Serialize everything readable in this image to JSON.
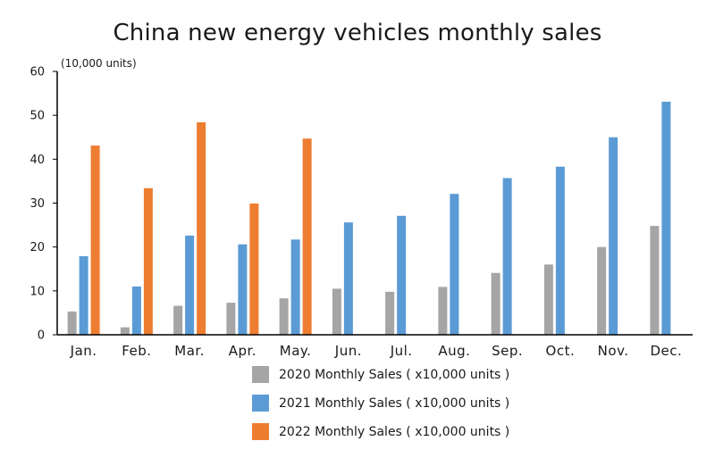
{
  "chart_data": {
    "type": "bar",
    "title": "China new energy vehicles monthly sales",
    "unit_label": "(10,000 units)",
    "xlabel": "",
    "ylabel": "",
    "ylim": [
      0,
      60
    ],
    "yticks": [
      "0",
      "10",
      "20",
      "30",
      "40",
      "50",
      "60"
    ],
    "grid": false,
    "legend_position": "bottom",
    "categories": [
      "Jan.",
      "Feb.",
      "Mar.",
      "Apr.",
      "May.",
      "Jun.",
      "Jul.",
      "Aug.",
      "Sep.",
      "Oct.",
      "Nov.",
      "Dec."
    ],
    "series": [
      {
        "name": "2020 Monthly Sales ( x10,000 units )",
        "color": "#a5a5a5",
        "values": [
          5.3,
          1.7,
          6.6,
          7.3,
          8.3,
          10.5,
          9.8,
          10.9,
          14.1,
          16.0,
          20.0,
          24.8
        ]
      },
      {
        "name": "2021 Monthly Sales ( x10,000 units )",
        "color": "#5b9bd5",
        "values": [
          17.9,
          11.0,
          22.6,
          20.6,
          21.7,
          25.6,
          27.1,
          32.1,
          35.7,
          38.3,
          45.0,
          53.1
        ]
      },
      {
        "name": "2022 Monthly Sales ( x10,000 units )",
        "color": "#ed7d31",
        "values": [
          43.1,
          33.4,
          48.4,
          29.9,
          44.7,
          null,
          null,
          null,
          null,
          null,
          null,
          null
        ]
      }
    ]
  }
}
